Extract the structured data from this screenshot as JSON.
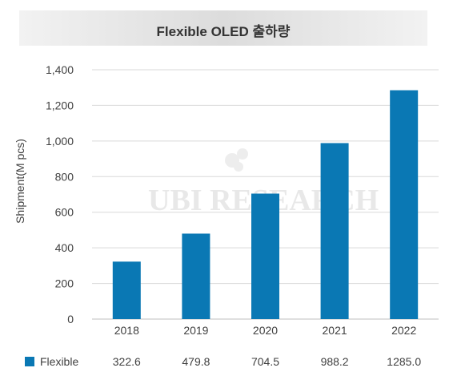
{
  "chart_data": {
    "type": "bar",
    "title": "Flexible OLED 출하량",
    "ylabel": "Shipment(M pcs)",
    "xlabel": "",
    "categories": [
      "2018",
      "2019",
      "2020",
      "2021",
      "2022"
    ],
    "series": [
      {
        "name": "Flexible",
        "values": [
          322.6,
          479.8,
          704.5,
          988.2,
          1285.0
        ],
        "value_labels": [
          "322.6",
          "479.8",
          "704.5",
          "988.2",
          "1285.0"
        ]
      }
    ],
    "ylim": [
      0,
      1400
    ],
    "yticks": [
      "0",
      "200",
      "400",
      "600",
      "800",
      "1,000",
      "1,200",
      "1,400"
    ],
    "ytick_values": [
      0,
      200,
      400,
      600,
      800,
      1000,
      1200,
      1400
    ],
    "grid": true,
    "legend": "data-table-bottom",
    "bar_color": "#0a78b4",
    "watermark": "UBI RESEARCH"
  }
}
